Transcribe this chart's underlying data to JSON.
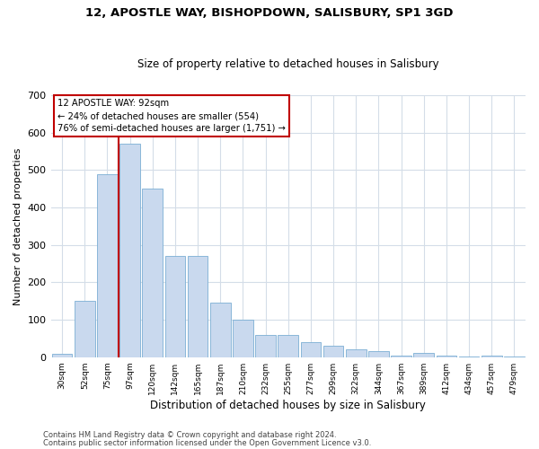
{
  "title1": "12, APOSTLE WAY, BISHOPDOWN, SALISBURY, SP1 3GD",
  "title2": "Size of property relative to detached houses in Salisbury",
  "xlabel": "Distribution of detached houses by size in Salisbury",
  "ylabel": "Number of detached properties",
  "annotation_line1": "12 APOSTLE WAY: 92sqm",
  "annotation_line2": "← 24% of detached houses are smaller (554)",
  "annotation_line3": "76% of semi-detached houses are larger (1,751) →",
  "bar_labels": [
    "30sqm",
    "52sqm",
    "75sqm",
    "97sqm",
    "120sqm",
    "142sqm",
    "165sqm",
    "187sqm",
    "210sqm",
    "232sqm",
    "255sqm",
    "277sqm",
    "299sqm",
    "322sqm",
    "344sqm",
    "367sqm",
    "389sqm",
    "412sqm",
    "434sqm",
    "457sqm",
    "479sqm"
  ],
  "bar_values": [
    10,
    150,
    490,
    570,
    450,
    270,
    270,
    145,
    100,
    60,
    60,
    40,
    30,
    20,
    15,
    5,
    12,
    3,
    1,
    3,
    1
  ],
  "bar_color": "#c9d9ee",
  "bar_edge_color": "#7bafd4",
  "vline_x": 3.0,
  "vline_color": "#c00000",
  "annotation_box_color": "#c00000",
  "ylim": [
    0,
    700
  ],
  "yticks": [
    0,
    100,
    200,
    300,
    400,
    500,
    600,
    700
  ],
  "footer1": "Contains HM Land Registry data © Crown copyright and database right 2024.",
  "footer2": "Contains public sector information licensed under the Open Government Licence v3.0.",
  "background_color": "#ffffff",
  "grid_color": "#d4dde8"
}
